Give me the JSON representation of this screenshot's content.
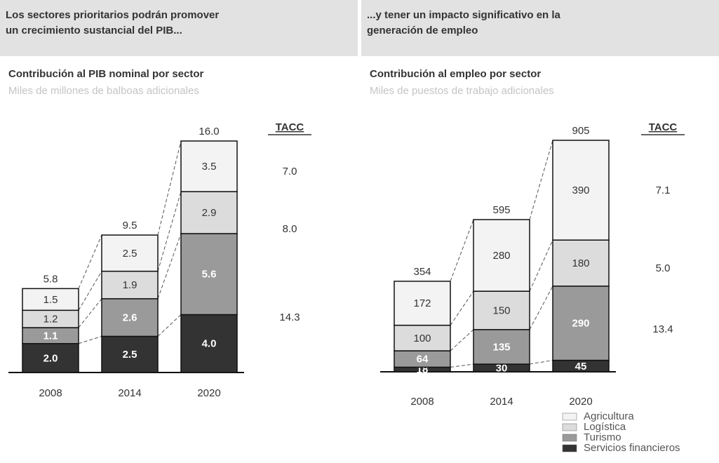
{
  "chart_data": [
    {
      "type": "bar",
      "stacked": true,
      "header": [
        "Los sectores prioritarios podrán promover",
        "un crecimiento sustancial del PIB..."
      ],
      "title": "Contribución al PIB nominal por sector",
      "subtitle": "Miles de millones de balboas adicionales",
      "categories": [
        "2008",
        "2014",
        "2020"
      ],
      "series": [
        {
          "color": "#333333",
          "values": [
            2.0,
            2.5,
            4.0
          ],
          "value_labels": [
            "2.0",
            "2.5",
            "4.0"
          ]
        },
        {
          "color": "#9a9a9a",
          "values": [
            1.1,
            2.6,
            5.6
          ],
          "value_labels": [
            "1.1",
            "2.6",
            "5.6"
          ]
        },
        {
          "color": "#dcdcdc",
          "values": [
            1.2,
            1.9,
            2.9
          ],
          "value_labels": [
            "1.2",
            "1.9",
            "2.9"
          ]
        },
        {
          "color": "#f3f3f3",
          "values": [
            1.5,
            2.5,
            3.5
          ],
          "value_labels": [
            "1.5",
            "2.5",
            "3.5"
          ]
        }
      ],
      "totals": {
        "values": [
          5.8,
          9.5,
          16.0
        ],
        "value_labels": [
          "5.8",
          "9.5",
          "16.0"
        ]
      },
      "tacc": {
        "label": "TACC",
        "values": [
          7.0,
          8.0,
          14.3
        ],
        "value_labels": [
          "7.0",
          "8.0",
          "14.3"
        ]
      }
    },
    {
      "type": "bar",
      "stacked": true,
      "header": [
        "...y tener un impacto significativo en la",
        "generación de empleo"
      ],
      "title": "Contribución al empleo por sector",
      "subtitle": "Miles de puestos de trabajo adicionales",
      "categories": [
        "2008",
        "2014",
        "2020"
      ],
      "series": [
        {
          "name": "Servicios financieros",
          "color": "#333333",
          "values": [
            18,
            30,
            45
          ]
        },
        {
          "name": "Turismo",
          "color": "#9a9a9a",
          "values": [
            64,
            135,
            290
          ]
        },
        {
          "name": "Logística",
          "color": "#dcdcdc",
          "values": [
            100,
            150,
            180
          ]
        },
        {
          "name": "Agricultura",
          "color": "#f3f3f3",
          "values": [
            172,
            280,
            390
          ]
        }
      ],
      "totals": {
        "values": [
          354,
          595,
          905
        ]
      },
      "tacc": {
        "label": "TACC",
        "values": [
          7.1,
          5.0,
          13.4
        ],
        "value_labels": [
          "7.1",
          "5.0",
          "13.4"
        ]
      }
    }
  ]
}
